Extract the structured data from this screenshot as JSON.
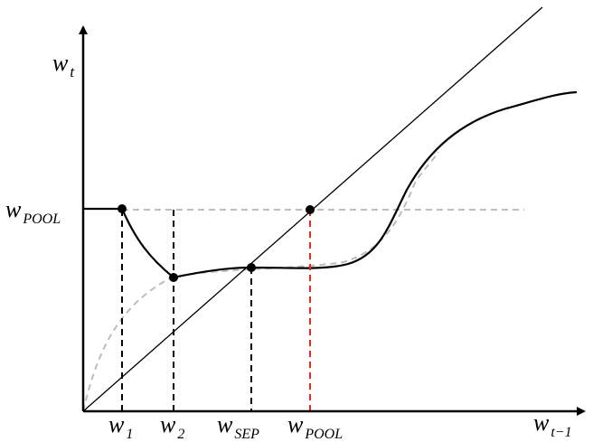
{
  "labels": {
    "y_axis": {
      "base": "w",
      "sub": "t"
    },
    "x_axis": {
      "base": "w",
      "sub": "t−1"
    },
    "w_pool_y": {
      "base": "w",
      "sub": "POOL"
    },
    "x_ticks": [
      {
        "base": "w",
        "sub": "1"
      },
      {
        "base": "w",
        "sub": "2"
      },
      {
        "base": "w",
        "sub": "SEP"
      },
      {
        "base": "w",
        "sub": "POOL"
      }
    ]
  },
  "colors": {
    "axis": "#000000",
    "curve": "#000000",
    "diagonal": "#000000",
    "guide_gray": "#bdbdbd",
    "drop_black": "#000000",
    "drop_red": "#e8291c",
    "point": "#000000"
  }
}
